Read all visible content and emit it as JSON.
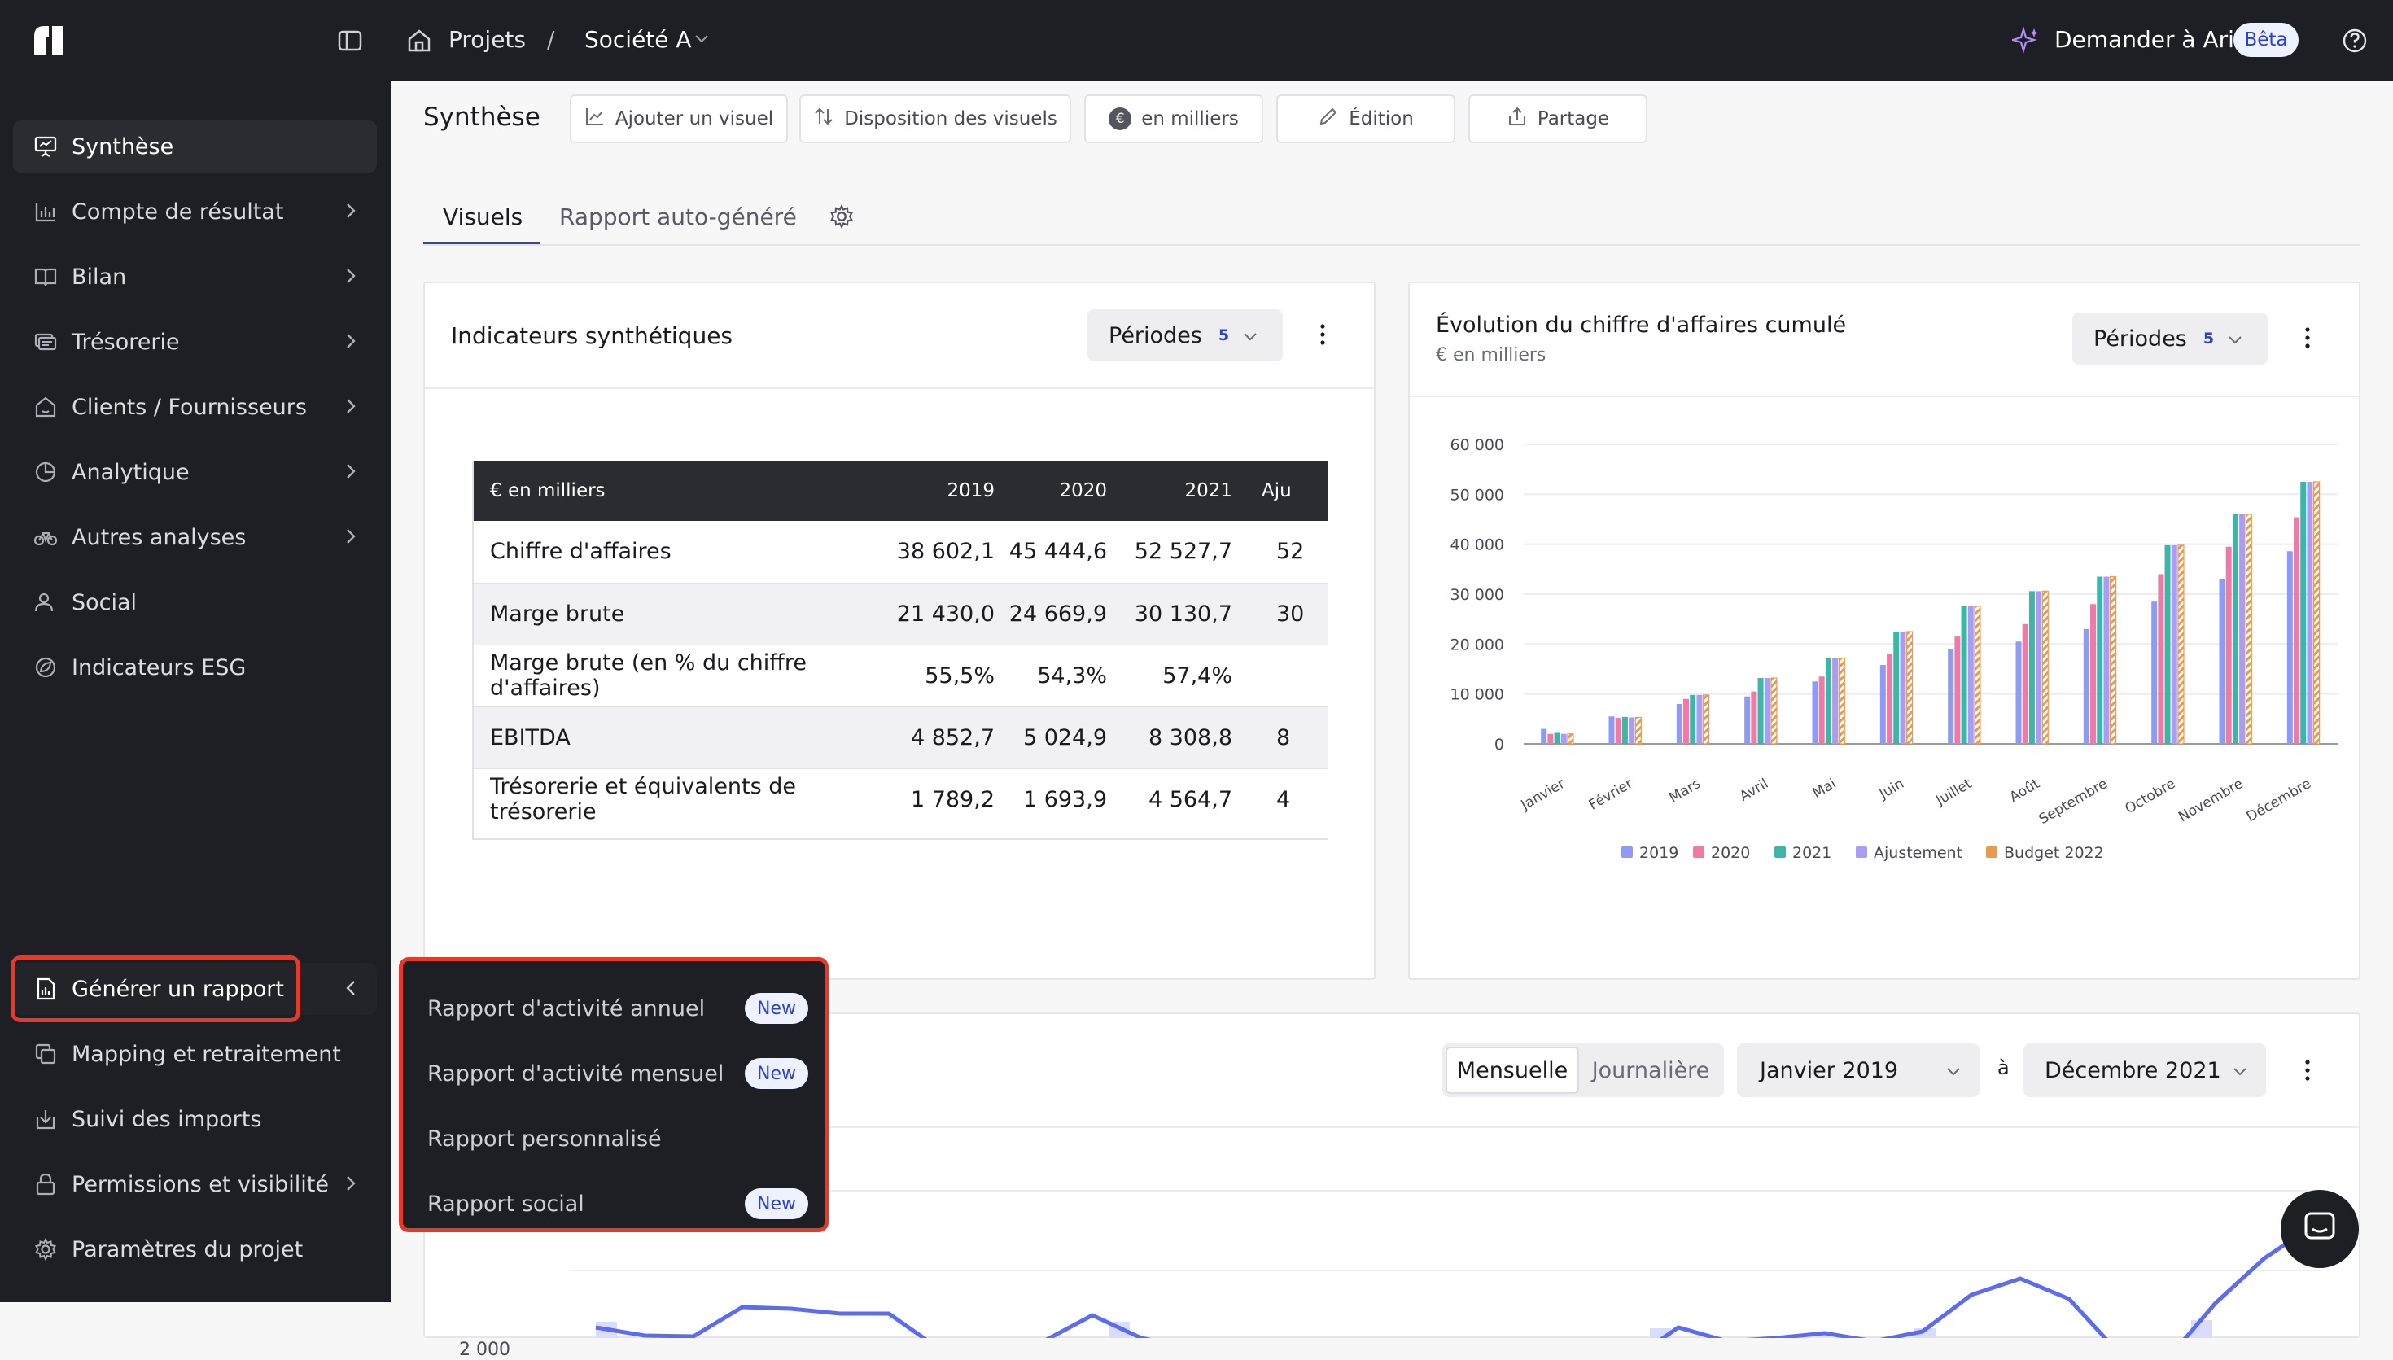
{
  "topbar": {
    "breadcrumb_root": "Projets",
    "breadcrumb_sep": "/",
    "breadcrumb_current": "Société A",
    "ask_label": "Demander à Ari",
    "beta_label": "Bêta"
  },
  "sidebar": {
    "items": [
      {
        "label": "Synthèse",
        "icon": "presentation-icon"
      },
      {
        "label": "Compte de résultat",
        "icon": "bar-chart-icon"
      },
      {
        "label": "Bilan",
        "icon": "book-icon"
      },
      {
        "label": "Trésorerie",
        "icon": "cash-icon"
      },
      {
        "label": "Clients / Fournisseurs",
        "icon": "home-icon"
      },
      {
        "label": "Analytique",
        "icon": "pie-icon"
      },
      {
        "label": "Autres analyses",
        "icon": "bike-icon"
      },
      {
        "label": "Social",
        "icon": "users-icon"
      },
      {
        "label": "Indicateurs ESG",
        "icon": "leaf-icon"
      }
    ],
    "bottom_items": [
      {
        "label": "Générer un rapport",
        "icon": "report-icon"
      },
      {
        "label": "Mapping et retraitement",
        "icon": "copy-icon"
      },
      {
        "label": "Suivi des imports",
        "icon": "import-icon"
      },
      {
        "label": "Permissions et visibilité",
        "icon": "lock-icon"
      },
      {
        "label": "Paramètres du projet",
        "icon": "gear-icon"
      }
    ]
  },
  "toolbar": {
    "title": "Synthèse",
    "add_visual": "Ajouter un visuel",
    "layout": "Disposition des visuels",
    "units": "en milliers",
    "edit": "Édition",
    "share": "Partage"
  },
  "tabs": {
    "visuels": "Visuels",
    "rapport": "Rapport auto-généré"
  },
  "card1": {
    "title": "Indicateurs synthétiques",
    "periods_label": "Périodes",
    "periods_count": "5",
    "table": {
      "headers": [
        "€ en milliers",
        "2019",
        "2020",
        "2021",
        "Aju"
      ],
      "rows": [
        [
          "Chiffre d'affaires",
          "38 602,1",
          "45 444,6",
          "52 527,7",
          "52"
        ],
        [
          "Marge brute",
          "21 430,0",
          "24 669,9",
          "30 130,7",
          "30"
        ],
        [
          "Marge brute (en % du chiffre d'affaires)",
          "55,5%",
          "54,3%",
          "57,4%",
          ""
        ],
        [
          "EBITDA",
          "4 852,7",
          "5 024,9",
          "8 308,8",
          "8"
        ],
        [
          "Trésorerie et équivalents de trésorerie",
          "1 789,2",
          "1 693,9",
          "4 564,7",
          "4"
        ]
      ]
    }
  },
  "card2": {
    "title": "Évolution du chiffre d'affaires cumulé",
    "subtitle": "€ en milliers",
    "periods_label": "Périodes",
    "periods_count": "5"
  },
  "chart_data": {
    "type": "bar",
    "categories": [
      "Janvier",
      "Février",
      "Mars",
      "Avril",
      "Mai",
      "Juin",
      "Juillet",
      "Août",
      "Septembre",
      "Octobre",
      "Novembre",
      "Décembre"
    ],
    "ylim": [
      0,
      60000
    ],
    "yticks": [
      "0",
      "10 000",
      "20 000",
      "30 000",
      "40 000",
      "50 000",
      "60 000"
    ],
    "legend_position": "bottom",
    "series": [
      {
        "name": "2019",
        "color": "#8e9bf5",
        "values": [
          3000,
          5500,
          8000,
          9500,
          12500,
          15800,
          19000,
          20500,
          23000,
          28500,
          33000,
          38600
        ]
      },
      {
        "name": "2020",
        "color": "#f07aa7",
        "values": [
          2000,
          5200,
          9000,
          10500,
          13500,
          18000,
          21500,
          24000,
          28000,
          34000,
          39500,
          45400
        ]
      },
      {
        "name": "2021",
        "color": "#3fb5a8",
        "values": [
          2200,
          5400,
          9800,
          13200,
          17200,
          22500,
          27600,
          30600,
          33500,
          39800,
          46000,
          52500
        ]
      },
      {
        "name": "Ajustement",
        "color": "#a99cf2",
        "values": [
          2000,
          5300,
          9800,
          13200,
          17200,
          22500,
          27600,
          30600,
          33500,
          39800,
          46000,
          52500
        ]
      },
      {
        "name": "Budget 2022",
        "color": "#e99a52",
        "values": [
          2000,
          5300,
          9800,
          13200,
          17200,
          22500,
          27600,
          30600,
          33500,
          39800,
          46000,
          52500
        ]
      }
    ]
  },
  "card3": {
    "toggle_monthly": "Mensuelle",
    "toggle_daily": "Journalière",
    "from": "Janvier 2019",
    "to_word": "à",
    "to": "Décembre 2021",
    "ytick": "2 000"
  },
  "popup": {
    "items": [
      {
        "label": "Rapport d'activité annuel",
        "badge": "New"
      },
      {
        "label": "Rapport d'activité mensuel",
        "badge": "New"
      },
      {
        "label": "Rapport personnalisé",
        "badge": ""
      },
      {
        "label": "Rapport social",
        "badge": "New"
      }
    ]
  },
  "colors": {
    "accent": "#2b3fd9",
    "highlight": "#e5392b",
    "sidebar": "#1e1f24"
  }
}
